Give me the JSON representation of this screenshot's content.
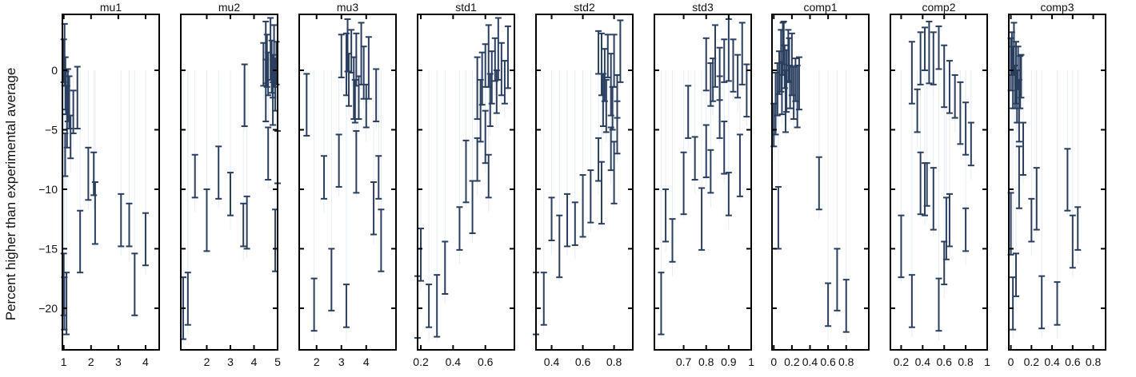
{
  "figure": {
    "ylabel": "Percent higher than experimental average",
    "y_ticks": [
      0,
      -5,
      -10,
      -15,
      -20
    ],
    "ylim": [
      -23.5,
      4.7
    ]
  },
  "colors": {
    "error_bar": "#2a3f5f",
    "background_line": "#e5ecf6",
    "frame": "#000000"
  },
  "chart_data": [
    {
      "type": "scatter",
      "title": "mu1",
      "xlim": [
        0.95,
        4.5
      ],
      "xticks": [
        1,
        2,
        3,
        4
      ],
      "points": [
        [
          1.0,
          -18
        ],
        [
          1.02,
          -19.6
        ],
        [
          1.05,
          -7.1
        ],
        [
          1.1,
          -19.6
        ],
        [
          1.2,
          -2.7
        ],
        [
          1.35,
          -3.5
        ],
        [
          1.6,
          -14.4
        ],
        [
          1.9,
          -8.7
        ],
        [
          2.1,
          -8.7
        ],
        [
          2.15,
          -12
        ],
        [
          3.1,
          -12.6
        ],
        [
          3.4,
          -13
        ],
        [
          3.6,
          -18
        ],
        [
          4.0,
          -14.2
        ],
        [
          1.0,
          0.8
        ],
        [
          1.03,
          1.3
        ],
        [
          1.06,
          -1.1
        ],
        [
          1.08,
          -1.9
        ],
        [
          1.12,
          -3.9
        ],
        [
          1.15,
          -2.1
        ],
        [
          1.25,
          -5.6
        ],
        [
          1.5,
          -2.3
        ]
      ]
    },
    {
      "type": "scatter",
      "title": "mu2",
      "xlim": [
        0.9,
        5
      ],
      "xticks": [
        2,
        3,
        4,
        5
      ],
      "points": [
        [
          1.0,
          -20
        ],
        [
          1.2,
          -19.2
        ],
        [
          1.5,
          -8.9
        ],
        [
          2.0,
          -12.6
        ],
        [
          2.5,
          -8.6
        ],
        [
          3.0,
          -10.4
        ],
        [
          3.6,
          -2.1
        ],
        [
          3.7,
          -12.8
        ],
        [
          3.55,
          -13
        ],
        [
          4.5,
          -1.7
        ],
        [
          4.6,
          -7
        ],
        [
          4.8,
          -2.8
        ],
        [
          4.9,
          -14.3
        ],
        [
          5.0,
          -7.3
        ],
        [
          4.4,
          0.5
        ],
        [
          4.5,
          1.5
        ],
        [
          4.55,
          0.8
        ],
        [
          4.6,
          -0.3
        ],
        [
          4.7,
          1.8
        ],
        [
          4.75,
          0.3
        ],
        [
          4.8,
          -0.5
        ],
        [
          4.85,
          1.2
        ],
        [
          4.9,
          -1.2
        ],
        [
          4.95,
          0.6
        ]
      ]
    },
    {
      "type": "scatter",
      "title": "mu3",
      "xlim": [
        1.3,
        5.2
      ],
      "xticks": [
        2,
        3,
        4
      ],
      "points": [
        [
          1.6,
          -2.9
        ],
        [
          1.9,
          -19.7
        ],
        [
          2.3,
          -9
        ],
        [
          2.6,
          -17.6
        ],
        [
          2.9,
          -7.6
        ],
        [
          3.2,
          -19.8
        ],
        [
          3.6,
          -7.7
        ],
        [
          4.3,
          -11.6
        ],
        [
          4.5,
          -9
        ],
        [
          4.6,
          -14.3
        ],
        [
          4.4,
          -2.1
        ],
        [
          3.0,
          1.2
        ],
        [
          3.2,
          0.5
        ],
        [
          3.3,
          -0.8
        ],
        [
          3.4,
          1.6
        ],
        [
          3.5,
          -1.5
        ],
        [
          3.6,
          0.9
        ],
        [
          3.7,
          -2.3
        ],
        [
          3.8,
          1.4
        ],
        [
          3.9,
          -0.2
        ],
        [
          4.0,
          -3.0
        ],
        [
          4.1,
          0.2
        ],
        [
          3.25,
          2.1
        ],
        [
          3.55,
          -2.6
        ]
      ]
    },
    {
      "type": "scatter",
      "title": "std1",
      "xlim": [
        0.18,
        0.78
      ],
      "xticks": [
        0.2,
        0.4,
        0.6
      ],
      "points": [
        [
          0.18,
          -19.9
        ],
        [
          0.2,
          -15.5
        ],
        [
          0.25,
          -19.8
        ],
        [
          0.3,
          -19.8
        ],
        [
          0.35,
          -16.6
        ],
        [
          0.44,
          -13.3
        ],
        [
          0.48,
          -8.5
        ],
        [
          0.52,
          -11.5
        ],
        [
          0.55,
          -7.5
        ],
        [
          0.57,
          -3.4
        ],
        [
          0.6,
          -5.6
        ],
        [
          0.62,
          -8.9
        ],
        [
          0.55,
          -1.5
        ],
        [
          0.58,
          -0.7
        ],
        [
          0.6,
          0.4
        ],
        [
          0.62,
          1.2
        ],
        [
          0.64,
          -0.6
        ],
        [
          0.66,
          0.9
        ],
        [
          0.68,
          1.8
        ],
        [
          0.7,
          0.1
        ],
        [
          0.72,
          -1.0
        ],
        [
          0.74,
          1.1
        ],
        [
          0.63,
          -2.5
        ],
        [
          0.67,
          -1.8
        ]
      ]
    },
    {
      "type": "scatter",
      "title": "std2",
      "xlim": [
        0.3,
        0.92
      ],
      "xticks": [
        0.4,
        0.6,
        0.8
      ],
      "points": [
        [
          0.3,
          -19.6
        ],
        [
          0.35,
          -19.2
        ],
        [
          0.4,
          -12.5
        ],
        [
          0.45,
          -14.8
        ],
        [
          0.5,
          -12.6
        ],
        [
          0.55,
          -12.9
        ],
        [
          0.6,
          -11.4
        ],
        [
          0.65,
          -10.6
        ],
        [
          0.7,
          -7.5
        ],
        [
          0.72,
          -10.3
        ],
        [
          0.75,
          -3.0
        ],
        [
          0.78,
          -6.6
        ],
        [
          0.8,
          -8.6
        ],
        [
          0.82,
          -4.8
        ],
        [
          0.7,
          1.5
        ],
        [
          0.72,
          0.5
        ],
        [
          0.74,
          -0.4
        ],
        [
          0.76,
          1.2
        ],
        [
          0.78,
          -1.2
        ],
        [
          0.8,
          0.8
        ],
        [
          0.82,
          -2.2
        ],
        [
          0.84,
          1.6
        ],
        [
          0.73,
          -2.5
        ],
        [
          0.79,
          -3.2
        ]
      ]
    },
    {
      "type": "scatter",
      "title": "std3",
      "xlim": [
        0.57,
        1.0
      ],
      "xticks": [
        0.7,
        0.8,
        0.9,
        1
      ],
      "points": [
        [
          0.6,
          -19.6
        ],
        [
          0.62,
          -12.2
        ],
        [
          0.65,
          -14.3
        ],
        [
          0.7,
          -9.5
        ],
        [
          0.72,
          -3.5
        ],
        [
          0.75,
          -7.4
        ],
        [
          0.78,
          -12.5
        ],
        [
          0.8,
          -6.8
        ],
        [
          0.82,
          -8.5
        ],
        [
          0.86,
          -3.1
        ],
        [
          0.88,
          -6.5
        ],
        [
          0.9,
          -10.4
        ],
        [
          0.95,
          -8.0
        ],
        [
          0.8,
          0.5
        ],
        [
          0.82,
          -1.2
        ],
        [
          0.84,
          1.2
        ],
        [
          0.86,
          -0.3
        ],
        [
          0.88,
          0.8
        ],
        [
          0.9,
          1.7
        ],
        [
          0.92,
          0.4
        ],
        [
          0.94,
          -0.5
        ],
        [
          0.96,
          1.4
        ],
        [
          0.98,
          -1.7
        ],
        [
          0.83,
          -0.8
        ]
      ]
    },
    {
      "type": "scatter",
      "title": "comp1",
      "xlim": [
        -0.02,
        1.05
      ],
      "xticks": [
        0,
        0.2,
        0.4,
        0.6,
        0.8
      ],
      "points": [
        [
          0.05,
          -12.4
        ],
        [
          0.5,
          -9.5
        ],
        [
          0.6,
          -19.7
        ],
        [
          0.7,
          -17.6
        ],
        [
          0.8,
          -19.8
        ],
        [
          0.0,
          -4.6
        ],
        [
          0.02,
          -2.8
        ],
        [
          0.04,
          -1.6
        ],
        [
          0.06,
          -0.2
        ],
        [
          0.08,
          0.8
        ],
        [
          0.1,
          1.8
        ],
        [
          0.12,
          0.3
        ],
        [
          0.14,
          -0.9
        ],
        [
          0.16,
          1.2
        ],
        [
          0.18,
          -1.4
        ],
        [
          0.2,
          0.5
        ],
        [
          0.22,
          -1.9
        ],
        [
          0.24,
          -0.8
        ],
        [
          0.26,
          -2.2
        ],
        [
          0.28,
          -1.1
        ],
        [
          0.11,
          2.3
        ],
        [
          0.13,
          -2.6
        ],
        [
          0.09,
          -1.5
        ],
        [
          0.17,
          0.9
        ]
      ]
    },
    {
      "type": "scatter",
      "title": "comp2",
      "xlim": [
        0.1,
        1.0
      ],
      "xticks": [
        0.2,
        0.4,
        0.6,
        0.8,
        1
      ],
      "points": [
        [
          0.2,
          -14.8
        ],
        [
          0.3,
          -19.4
        ],
        [
          0.35,
          -3.4
        ],
        [
          0.38,
          -9.5
        ],
        [
          0.42,
          -10.0
        ],
        [
          0.44,
          -9.6
        ],
        [
          0.5,
          -10.8
        ],
        [
          0.55,
          -19.7
        ],
        [
          0.6,
          -16.2
        ],
        [
          0.62,
          -13.3
        ],
        [
          0.65,
          -12.6
        ],
        [
          0.8,
          -13.4
        ],
        [
          0.3,
          -0.2
        ],
        [
          0.38,
          1.0
        ],
        [
          0.42,
          1.8
        ],
        [
          0.46,
          1.5
        ],
        [
          0.5,
          1.0
        ],
        [
          0.55,
          1.9
        ],
        [
          0.6,
          -0.5
        ],
        [
          0.65,
          -1.4
        ],
        [
          0.7,
          -2.2
        ],
        [
          0.75,
          -3.6
        ],
        [
          0.8,
          -4.9
        ],
        [
          0.85,
          -6.2
        ]
      ]
    },
    {
      "type": "scatter",
      "title": "comp3",
      "xlim": [
        -0.02,
        0.92
      ],
      "xticks": [
        0,
        0.2,
        0.4,
        0.6,
        0.8
      ],
      "points": [
        [
          0.0,
          -12.9
        ],
        [
          0.02,
          -19.6
        ],
        [
          0.05,
          -17.2
        ],
        [
          0.08,
          -9.0
        ],
        [
          0.12,
          -6.6
        ],
        [
          0.2,
          -12.6
        ],
        [
          0.25,
          -10.8
        ],
        [
          0.3,
          -19.5
        ],
        [
          0.45,
          -19.6
        ],
        [
          0.55,
          -9.2
        ],
        [
          0.6,
          -14.4
        ],
        [
          0.65,
          -13.3
        ],
        [
          0.95,
          -19.6
        ],
        [
          0.0,
          0.5
        ],
        [
          0.01,
          1.4
        ],
        [
          0.02,
          -0.6
        ],
        [
          0.03,
          1.8
        ],
        [
          0.04,
          -1.4
        ],
        [
          0.05,
          -0.2
        ],
        [
          0.06,
          -2.2
        ],
        [
          0.07,
          0.2
        ],
        [
          0.08,
          -3.4
        ],
        [
          0.09,
          -1.0
        ],
        [
          0.1,
          -0.5
        ]
      ]
    }
  ]
}
